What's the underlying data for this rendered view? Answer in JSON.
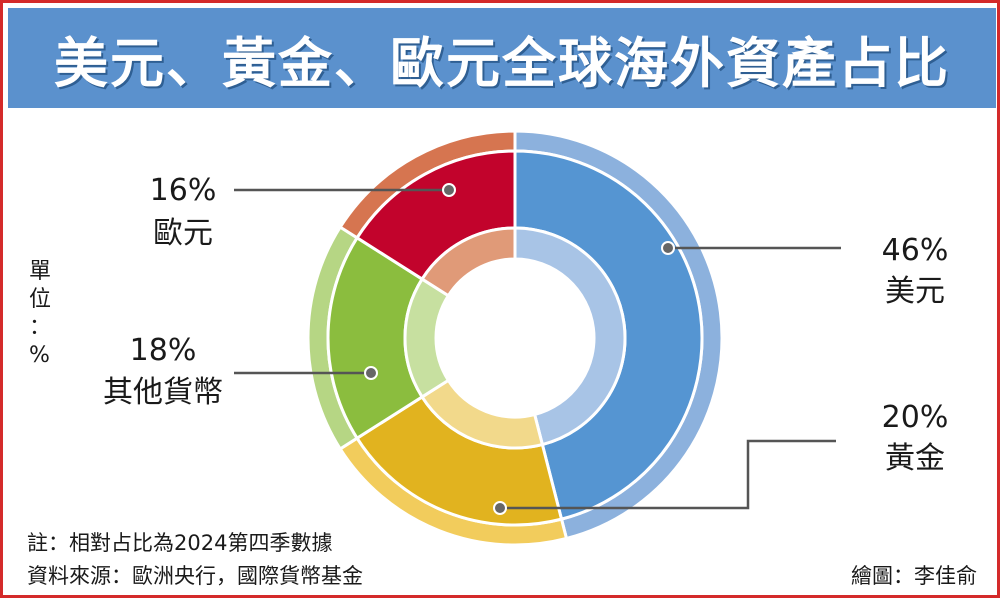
{
  "title": "美元、黃金、歐元全球海外資產占比",
  "unit_label": [
    "單",
    "位",
    "：",
    "%"
  ],
  "footnote": "註：相對占比為2024第四季數據",
  "source": "資料來源：歐洲央行，國際貨幣基金",
  "credit": "繪圖：李佳俞",
  "chart_data": {
    "type": "pie",
    "style": "donut",
    "categories": [
      "美元",
      "黃金",
      "其他貨幣",
      "歐元"
    ],
    "values": [
      46,
      20,
      18,
      16
    ],
    "value_labels": [
      "46%",
      "20%",
      "18%",
      "16%"
    ],
    "colors": {
      "outer": [
        "#8cb1dd",
        "#f2cc5c",
        "#b6d684",
        "#d67550"
      ],
      "mid": [
        "#5595d2",
        "#e1b31f",
        "#8bbd3e",
        "#c2032c"
      ],
      "inner": [
        "#a8c4e6",
        "#f2d98b",
        "#c7e0a0",
        "#e09a78"
      ]
    },
    "unit": "%"
  }
}
